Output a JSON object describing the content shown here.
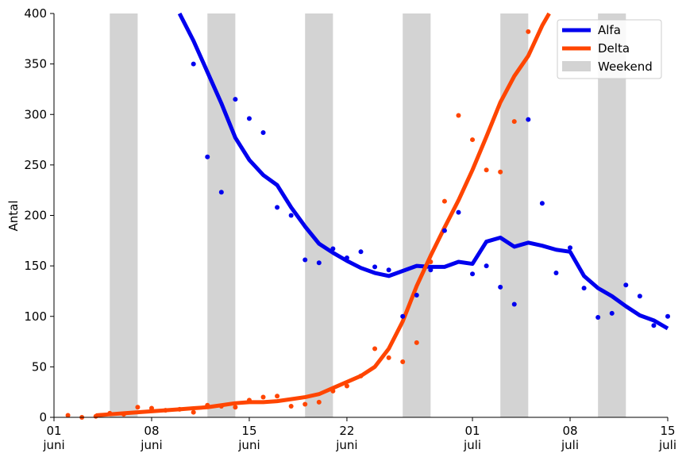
{
  "chart_data": {
    "type": "line",
    "ylabel": "Antal",
    "xlabel": "",
    "ylim": [
      0,
      400
    ],
    "xlim": [
      "2021-06-01",
      "2021-07-15"
    ],
    "yticks": [
      0,
      50,
      100,
      150,
      200,
      250,
      300,
      350,
      400
    ],
    "xticks": [
      {
        "date": "2021-06-01",
        "label": [
          "01",
          "juni"
        ]
      },
      {
        "date": "2021-06-08",
        "label": [
          "08",
          "juni"
        ]
      },
      {
        "date": "2021-06-15",
        "label": [
          "15",
          "juni"
        ]
      },
      {
        "date": "2021-06-22",
        "label": [
          "22",
          "juni"
        ]
      },
      {
        "date": "2021-07-01",
        "label": [
          "01",
          "juli"
        ]
      },
      {
        "date": "2021-07-08",
        "label": [
          "08",
          "juli"
        ]
      },
      {
        "date": "2021-07-15",
        "label": [
          "15",
          "juli"
        ]
      }
    ],
    "legend": {
      "placement": "top-right",
      "entries": [
        "Alfa",
        "Delta",
        "Weekend"
      ]
    },
    "weekend": {
      "name": "Weekend",
      "color": "#d3d3d3",
      "periods": [
        [
          "2021-06-05",
          "2021-06-07"
        ],
        [
          "2021-06-12",
          "2021-06-14"
        ],
        [
          "2021-06-19",
          "2021-06-21"
        ],
        [
          "2021-06-26",
          "2021-06-28"
        ],
        [
          "2021-07-03",
          "2021-07-05"
        ],
        [
          "2021-07-10",
          "2021-07-12"
        ]
      ]
    },
    "series": [
      {
        "name": "Alfa",
        "color": "#0000ee",
        "trend": [
          [
            "2021-06-10",
            401
          ],
          [
            "2021-06-11",
            373
          ],
          [
            "2021-06-12",
            342
          ],
          [
            "2021-06-13",
            311
          ],
          [
            "2021-06-14",
            277
          ],
          [
            "2021-06-15",
            255
          ],
          [
            "2021-06-16",
            240
          ],
          [
            "2021-06-17",
            230
          ],
          [
            "2021-06-18",
            208
          ],
          [
            "2021-06-19",
            189
          ],
          [
            "2021-06-20",
            172
          ],
          [
            "2021-06-21",
            163
          ],
          [
            "2021-06-22",
            155
          ],
          [
            "2021-06-23",
            148
          ],
          [
            "2021-06-24",
            143
          ],
          [
            "2021-06-25",
            140
          ],
          [
            "2021-06-26",
            145
          ],
          [
            "2021-06-27",
            150
          ],
          [
            "2021-06-28",
            149
          ],
          [
            "2021-06-29",
            149
          ],
          [
            "2021-06-30",
            154
          ],
          [
            "2021-07-01",
            152
          ],
          [
            "2021-07-02",
            174
          ],
          [
            "2021-07-03",
            178
          ],
          [
            "2021-07-04",
            169
          ],
          [
            "2021-07-05",
            173
          ],
          [
            "2021-07-06",
            170
          ],
          [
            "2021-07-07",
            166
          ],
          [
            "2021-07-08",
            164
          ],
          [
            "2021-07-09",
            140
          ],
          [
            "2021-07-10",
            128
          ],
          [
            "2021-07-11",
            120
          ],
          [
            "2021-07-12",
            110
          ],
          [
            "2021-07-13",
            101
          ],
          [
            "2021-07-14",
            96
          ],
          [
            "2021-07-15",
            88
          ]
        ],
        "points": [
          [
            "2021-06-11",
            350
          ],
          [
            "2021-06-12",
            258
          ],
          [
            "2021-06-13",
            223
          ],
          [
            "2021-06-14",
            315
          ],
          [
            "2021-06-15",
            296
          ],
          [
            "2021-06-16",
            282
          ],
          [
            "2021-06-17",
            208
          ],
          [
            "2021-06-18",
            200
          ],
          [
            "2021-06-19",
            156
          ],
          [
            "2021-06-20",
            153
          ],
          [
            "2021-06-21",
            167
          ],
          [
            "2021-06-22",
            158
          ],
          [
            "2021-06-23",
            164
          ],
          [
            "2021-06-24",
            149
          ],
          [
            "2021-06-25",
            146
          ],
          [
            "2021-06-26",
            100
          ],
          [
            "2021-06-27",
            121
          ],
          [
            "2021-06-28",
            146
          ],
          [
            "2021-06-29",
            185
          ],
          [
            "2021-06-30",
            203
          ],
          [
            "2021-07-01",
            142
          ],
          [
            "2021-07-02",
            150
          ],
          [
            "2021-07-03",
            129
          ],
          [
            "2021-07-04",
            112
          ],
          [
            "2021-07-05",
            295
          ],
          [
            "2021-07-06",
            212
          ],
          [
            "2021-07-07",
            143
          ],
          [
            "2021-07-08",
            168
          ],
          [
            "2021-07-09",
            128
          ],
          [
            "2021-07-10",
            99
          ],
          [
            "2021-07-11",
            103
          ],
          [
            "2021-07-12",
            131
          ],
          [
            "2021-07-13",
            120
          ],
          [
            "2021-07-14",
            91
          ],
          [
            "2021-07-15",
            100
          ]
        ]
      },
      {
        "name": "Delta",
        "color": "#ff4500",
        "trend": [
          [
            "2021-06-04",
            2
          ],
          [
            "2021-06-05",
            3
          ],
          [
            "2021-06-06",
            4
          ],
          [
            "2021-06-07",
            5
          ],
          [
            "2021-06-08",
            6
          ],
          [
            "2021-06-09",
            7
          ],
          [
            "2021-06-10",
            8
          ],
          [
            "2021-06-11",
            9
          ],
          [
            "2021-06-12",
            10
          ],
          [
            "2021-06-13",
            12
          ],
          [
            "2021-06-14",
            14
          ],
          [
            "2021-06-15",
            15
          ],
          [
            "2021-06-16",
            15
          ],
          [
            "2021-06-17",
            16
          ],
          [
            "2021-06-18",
            18
          ],
          [
            "2021-06-19",
            20
          ],
          [
            "2021-06-20",
            23
          ],
          [
            "2021-06-21",
            29
          ],
          [
            "2021-06-22",
            35
          ],
          [
            "2021-06-23",
            41
          ],
          [
            "2021-06-24",
            50
          ],
          [
            "2021-06-25",
            68
          ],
          [
            "2021-06-26",
            95
          ],
          [
            "2021-06-27",
            130
          ],
          [
            "2021-06-28",
            160
          ],
          [
            "2021-06-29",
            188
          ],
          [
            "2021-06-30",
            215
          ],
          [
            "2021-07-01",
            245
          ],
          [
            "2021-07-02",
            278
          ],
          [
            "2021-07-03",
            312
          ],
          [
            "2021-07-04",
            338
          ],
          [
            "2021-07-05",
            358
          ],
          [
            "2021-07-06",
            388
          ],
          [
            "2021-07-06.5",
            402
          ]
        ],
        "points": [
          [
            "2021-06-02",
            2
          ],
          [
            "2021-06-03",
            0
          ],
          [
            "2021-06-04",
            1
          ],
          [
            "2021-06-05",
            4
          ],
          [
            "2021-06-06",
            3
          ],
          [
            "2021-06-07",
            10
          ],
          [
            "2021-06-08",
            9
          ],
          [
            "2021-06-09",
            7
          ],
          [
            "2021-06-10",
            8
          ],
          [
            "2021-06-11",
            5
          ],
          [
            "2021-06-12",
            12
          ],
          [
            "2021-06-13",
            11
          ],
          [
            "2021-06-14",
            10
          ],
          [
            "2021-06-15",
            17
          ],
          [
            "2021-06-16",
            20
          ],
          [
            "2021-06-17",
            21
          ],
          [
            "2021-06-18",
            11
          ],
          [
            "2021-06-19",
            13
          ],
          [
            "2021-06-20",
            15
          ],
          [
            "2021-06-21",
            26
          ],
          [
            "2021-06-22",
            31
          ],
          [
            "2021-06-23",
            41
          ],
          [
            "2021-06-24",
            68
          ],
          [
            "2021-06-25",
            59
          ],
          [
            "2021-06-26",
            55
          ],
          [
            "2021-06-27",
            74
          ],
          [
            "2021-06-28",
            154
          ],
          [
            "2021-06-29",
            214
          ],
          [
            "2021-06-30",
            299
          ],
          [
            "2021-07-01",
            275
          ],
          [
            "2021-07-02",
            245
          ],
          [
            "2021-07-03",
            243
          ],
          [
            "2021-07-04",
            293
          ],
          [
            "2021-07-05",
            382
          ]
        ]
      }
    ]
  }
}
